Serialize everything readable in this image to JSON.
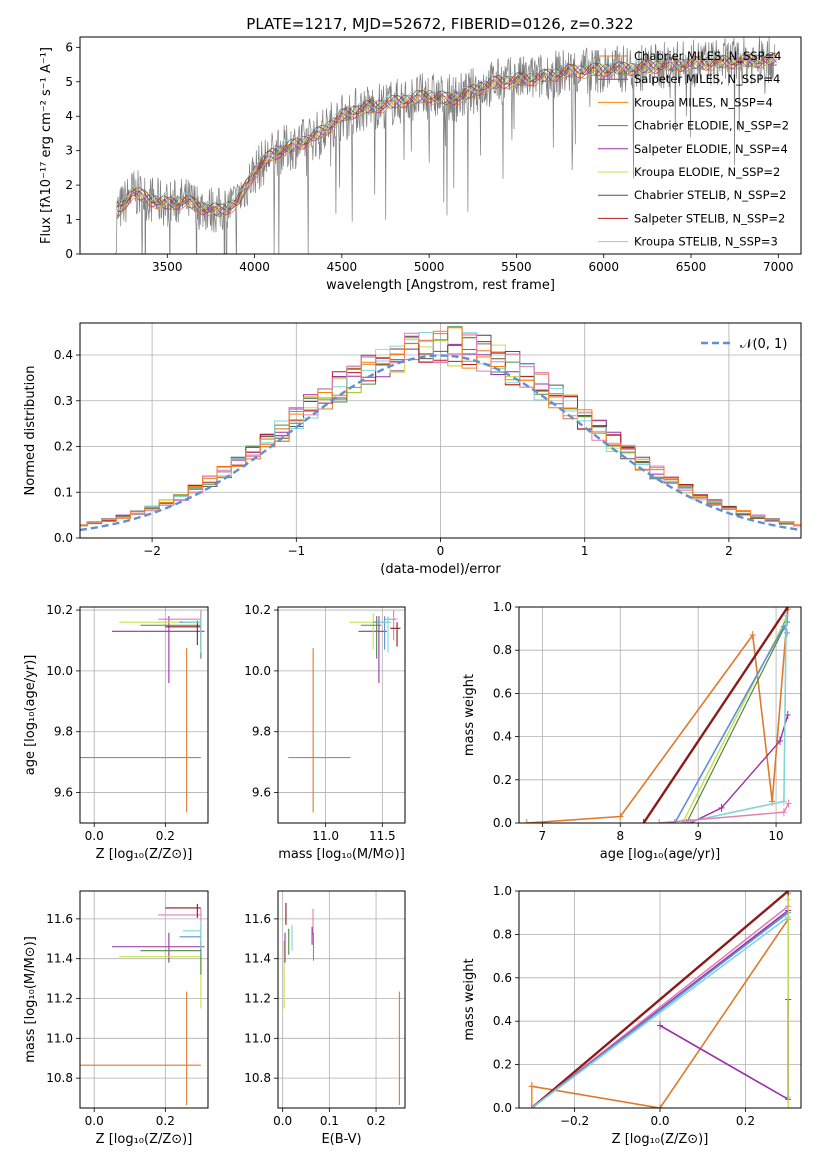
{
  "title": "PLATE=1217, MJD=52672, FIBERID=0126, z=0.322",
  "colors": {
    "orange": "#e0792a",
    "orange2": "#ff7f0e",
    "green": "#4d8a3c",
    "purple": "#9b2fae",
    "yellow": "#c8e04a",
    "gray": "#7f7f7f",
    "darkred": "#8b1a1a",
    "cyan": "#7fd6d6",
    "blue": "#5f8fd6",
    "pink": "#e37fb5"
  },
  "chart_data": [
    {
      "type": "line",
      "title": "PLATE=1217, MJD=52672, FIBERID=0126, z=0.322",
      "xlabel": "wavelength [Angstrom, rest frame]",
      "ylabel": "Flux [fλ10⁻¹⁷ erg cm⁻² s⁻¹ A⁻¹]",
      "xlim": [
        3000,
        7130
      ],
      "ylim": [
        0,
        6.3
      ],
      "xticks": [
        "3500",
        "4000",
        "4500",
        "5000",
        "5500",
        "6000",
        "6500",
        "7000"
      ],
      "yticks": [
        "0",
        "1",
        "2",
        "3",
        "4",
        "5",
        "6"
      ],
      "legend_position": "top-right",
      "series": [
        {
          "name": "Chabrier MILES, N_SSP=4",
          "color": "#e0792a"
        },
        {
          "name": "Salpeter MILES, N_SSP=4",
          "color": "#9b2fae"
        },
        {
          "name": "Kroupa MILES, N_SSP=4",
          "color": "#ff7f0e"
        },
        {
          "name": "Chabrier ELODIE, N_SSP=2",
          "color": "#4d8a3c"
        },
        {
          "name": "Salpeter ELODIE, N_SSP=4",
          "color": "#9b2fae"
        },
        {
          "name": "Kroupa ELODIE, N_SSP=2",
          "color": "#c8e04a"
        },
        {
          "name": "Chabrier STELIB, N_SSP=2",
          "color": "#555555"
        },
        {
          "name": "Salpeter STELIB, N_SSP=2",
          "color": "#b21e1e"
        },
        {
          "name": "Kroupa STELIB, N_SSP=3",
          "color": "#7fd6d6"
        }
      ],
      "continuum": {
        "x": [
          3200,
          3300,
          3400,
          3500,
          3600,
          3700,
          3800,
          3900,
          4000,
          4100,
          4200,
          4300,
          4400,
          4500,
          4600,
          4700,
          4800,
          4900,
          5000,
          5100,
          5200,
          5300,
          5400,
          5500,
          5600,
          5800,
          6000,
          6200,
          6400,
          6600,
          6800,
          7000
        ],
        "y": [
          1.1,
          1.8,
          1.6,
          1.45,
          1.55,
          1.35,
          1.25,
          1.5,
          2.4,
          2.9,
          3.1,
          3.3,
          3.6,
          4.0,
          4.2,
          4.3,
          4.4,
          4.5,
          4.6,
          4.5,
          4.6,
          4.85,
          5.0,
          5.05,
          5.1,
          5.3,
          5.35,
          5.4,
          5.5,
          5.55,
          5.6,
          5.65
        ]
      }
    },
    {
      "type": "line",
      "xlabel": "(data-model)/error",
      "ylabel": "Normed distribution",
      "xlim": [
        -2.5,
        2.5
      ],
      "ylim": [
        0,
        0.47
      ],
      "xticks": [
        "−2",
        "−1",
        "0",
        "1",
        "2"
      ],
      "yticks": [
        "0.0",
        "0.1",
        "0.2",
        "0.3",
        "0.4"
      ],
      "legend_position": "top-right",
      "series": [
        {
          "name": "𝒩(0, 1)",
          "color": "#5f8fd6"
        }
      ]
    },
    {
      "type": "scatter",
      "xlabel": "Z [log₁₀(Z/Z⊙)]",
      "ylabel": "age  [log₁₀(age/yr)]",
      "xlim": [
        -0.04,
        0.32
      ],
      "ylim": [
        9.5,
        10.21
      ],
      "xticks": [
        "0.0",
        "0.2"
      ],
      "yticks": [
        "9.6",
        "9.8",
        "10.0",
        "10.2"
      ]
    },
    {
      "type": "scatter",
      "xlabel": "mass [log₁₀(M/M⊙)]",
      "ylabel": "",
      "xlim": [
        10.58,
        11.7
      ],
      "ylim": [
        9.5,
        10.21
      ],
      "xticks": [
        "11.0",
        "11.5"
      ],
      "yticks": [
        "9.6",
        "9.8",
        "10.0",
        "10.2"
      ]
    },
    {
      "type": "line",
      "xlabel": "age  [log₁₀(age/yr)]",
      "ylabel": "mass weight",
      "xlim": [
        6.7,
        10.32
      ],
      "ylim": [
        0,
        1.0
      ],
      "xticks": [
        "7",
        "8",
        "9",
        "10"
      ],
      "yticks": [
        "0.0",
        "0.2",
        "0.4",
        "0.6",
        "0.8",
        "1.0"
      ]
    },
    {
      "type": "scatter",
      "xlabel": "Z [log₁₀(Z/Z⊙)]",
      "ylabel": "mass [log₁₀(M/M⊙)]",
      "xlim": [
        -0.04,
        0.32
      ],
      "ylim": [
        10.65,
        11.74
      ],
      "xticks": [
        "0.0",
        "0.2"
      ],
      "yticks": [
        "10.8",
        "11.0",
        "11.2",
        "11.4",
        "11.6"
      ]
    },
    {
      "type": "scatter",
      "xlabel": "E(B-V)",
      "ylabel": "",
      "xlim": [
        -0.01,
        0.262
      ],
      "ylim": [
        10.65,
        11.74
      ],
      "xticks": [
        "0.0",
        "0.1",
        "0.2"
      ],
      "yticks": [
        "10.8",
        "11.0",
        "11.2",
        "11.4",
        "11.6"
      ]
    },
    {
      "type": "line",
      "xlabel": "Z [log₁₀(Z/Z⊙)]",
      "ylabel": "mass weight",
      "xlim": [
        -0.33,
        0.33
      ],
      "ylim": [
        0,
        1.0
      ],
      "xticks": [
        "−0.2",
        "0.0",
        "0.2"
      ],
      "yticks": [
        "0.0",
        "0.2",
        "0.4",
        "0.6",
        "0.8",
        "1.0"
      ]
    }
  ]
}
